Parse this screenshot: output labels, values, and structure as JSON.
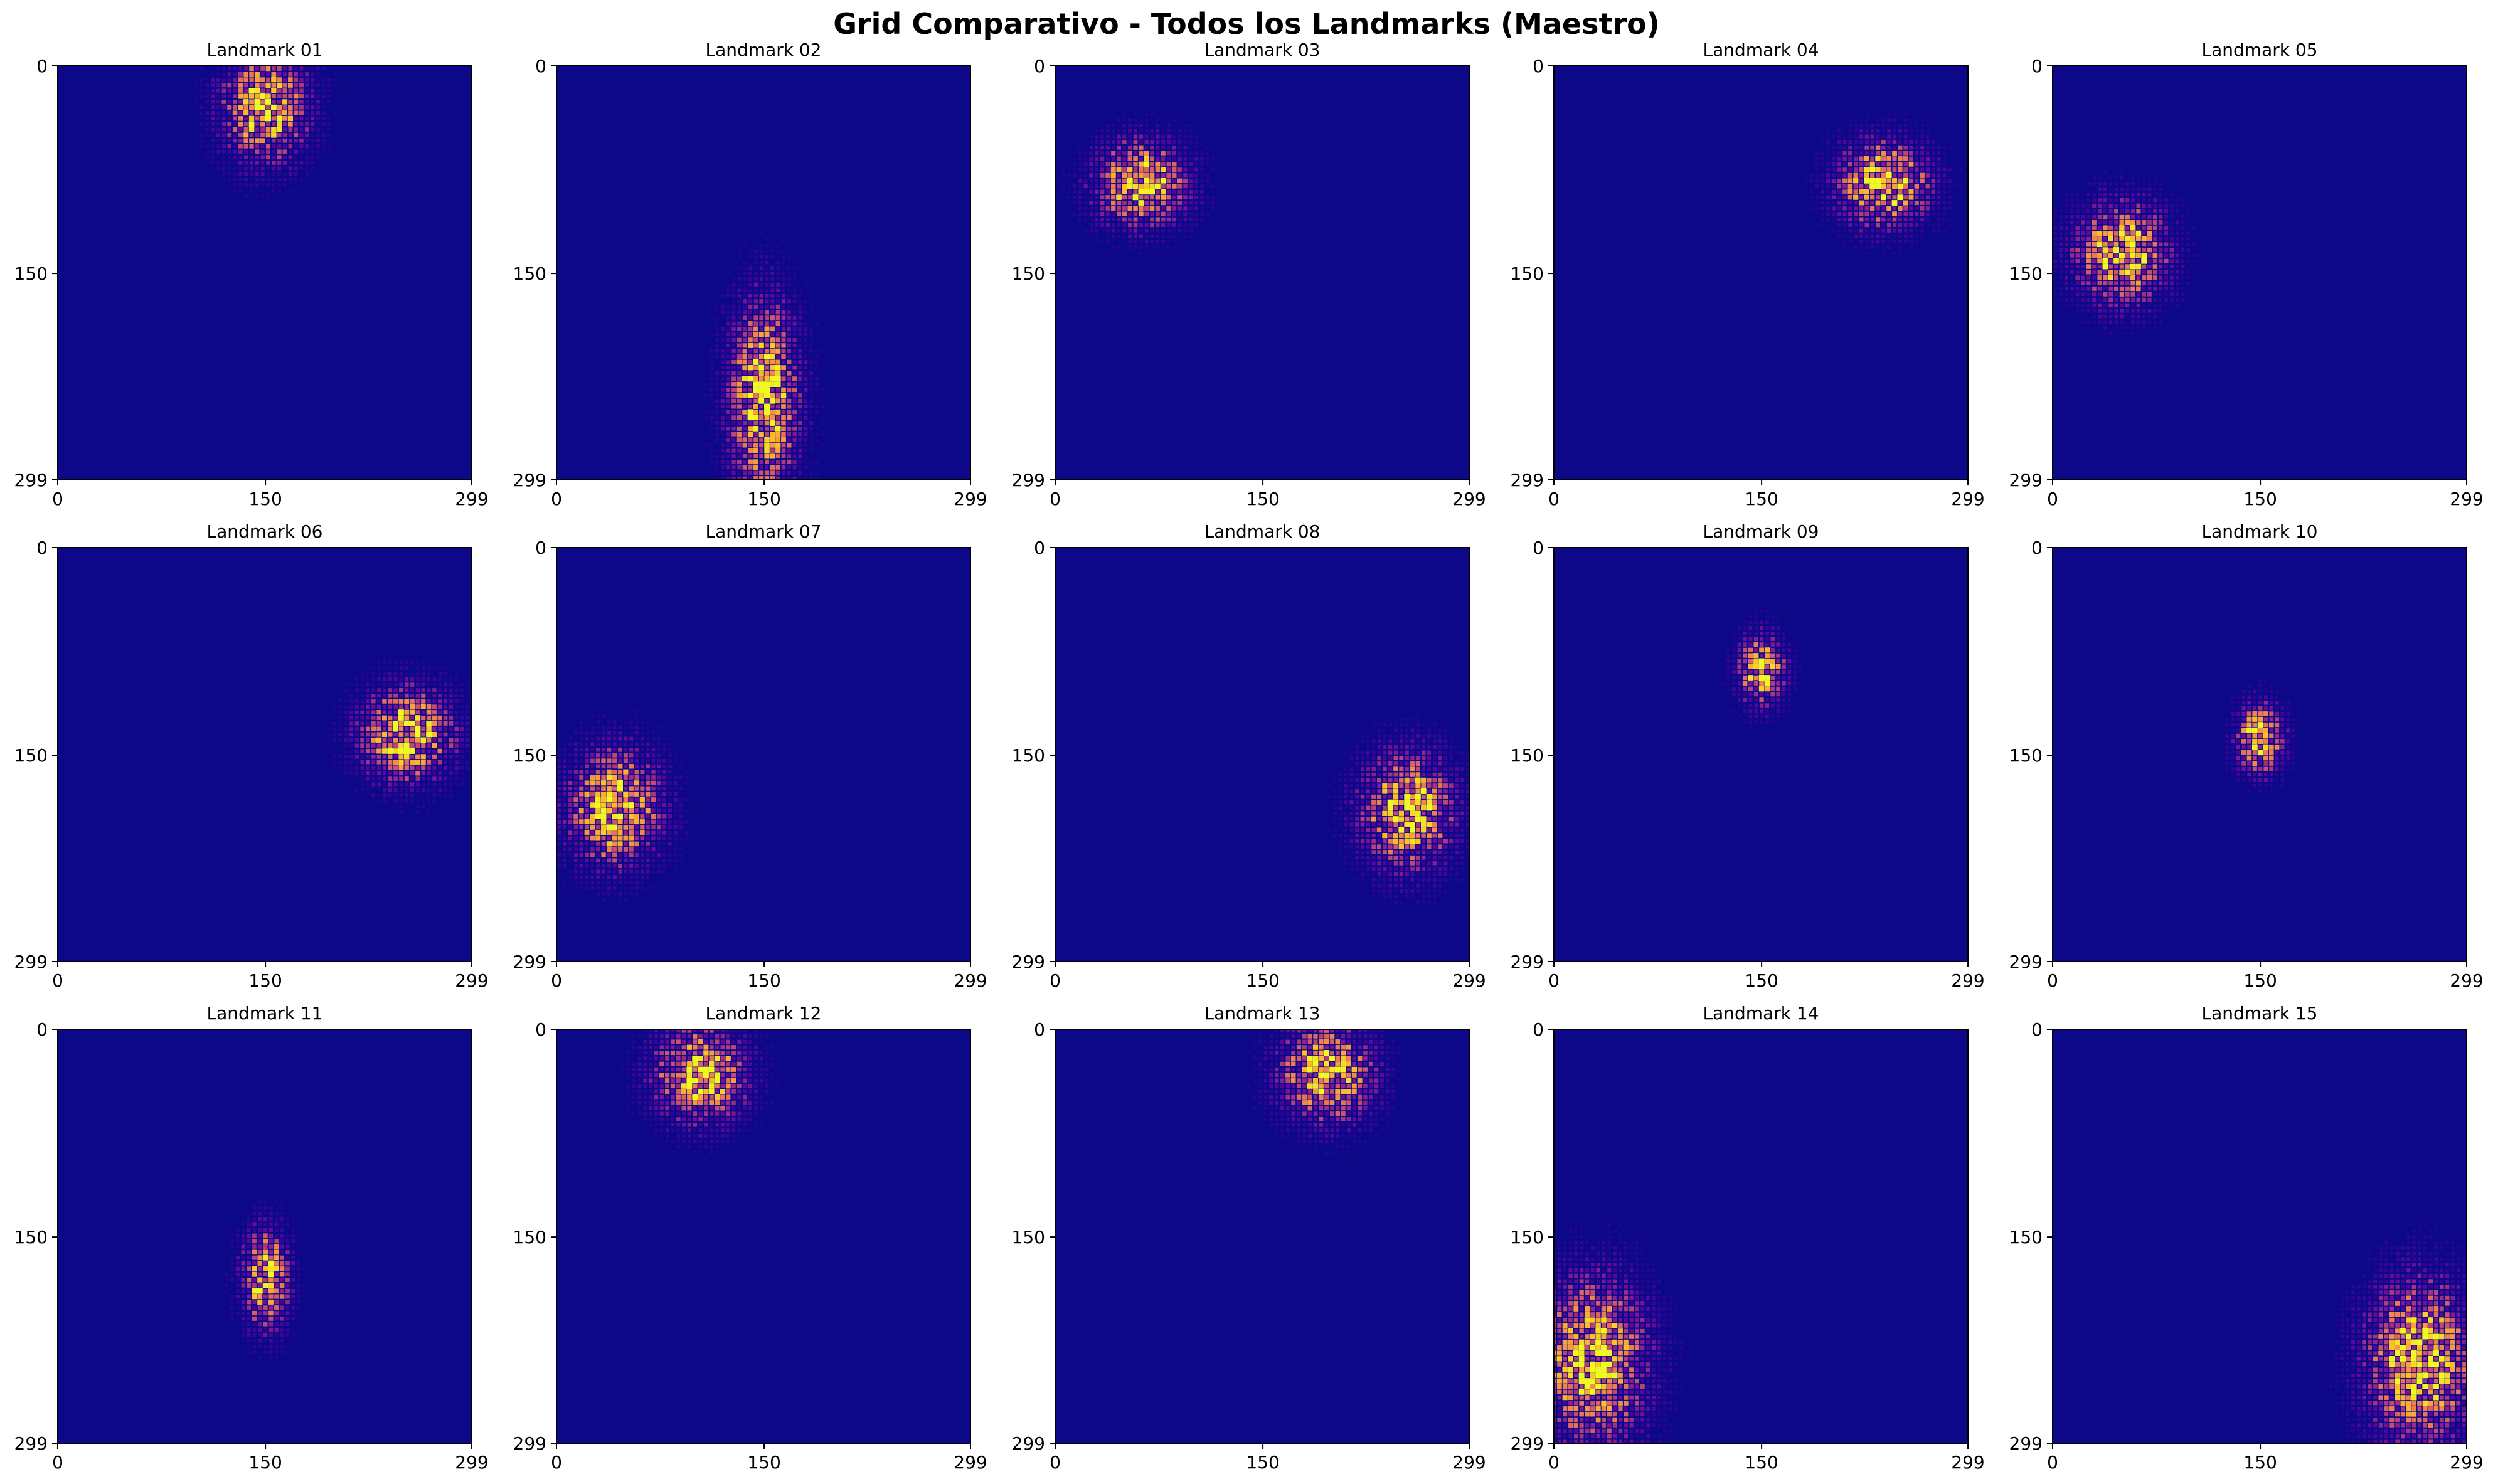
{
  "figure": {
    "title": "Grid Comparativo - Todos los Landmarks (Maestro)"
  },
  "chart_data": {
    "type": "heatmap",
    "title": "Grid Comparativo - Todos los Landmarks (Maestro)",
    "colormap": "plasma",
    "background_color": "#0d0887",
    "rows": 3,
    "cols": 5,
    "xlim": [
      0,
      299
    ],
    "ylim": [
      0,
      299
    ],
    "x_ticks": [
      "0",
      "150",
      "299"
    ],
    "y_ticks": [
      "0",
      "150",
      "299"
    ],
    "panels": [
      {
        "title": "Landmark 01",
        "center": [
          150,
          30
        ],
        "spread": [
          22,
          28
        ]
      },
      {
        "title": "Landmark 02",
        "center": [
          150,
          240
        ],
        "spread": [
          18,
          50
        ]
      },
      {
        "title": "Landmark 03",
        "center": [
          62,
          85
        ],
        "spread": [
          24,
          22
        ]
      },
      {
        "title": "Landmark 04",
        "center": [
          238,
          85
        ],
        "spread": [
          24,
          22
        ]
      },
      {
        "title": "Landmark 05",
        "center": [
          50,
          135
        ],
        "spread": [
          24,
          26
        ]
      },
      {
        "title": "Landmark 06",
        "center": [
          252,
          135
        ],
        "spread": [
          24,
          24
        ]
      },
      {
        "title": "Landmark 07",
        "center": [
          42,
          188
        ],
        "spread": [
          24,
          30
        ]
      },
      {
        "title": "Landmark 08",
        "center": [
          254,
          190
        ],
        "spread": [
          24,
          30
        ]
      },
      {
        "title": "Landmark 09",
        "center": [
          150,
          88
        ],
        "spread": [
          12,
          18
        ]
      },
      {
        "title": "Landmark 10",
        "center": [
          150,
          138
        ],
        "spread": [
          12,
          18
        ]
      },
      {
        "title": "Landmark 11",
        "center": [
          150,
          180
        ],
        "spread": [
          12,
          25
        ]
      },
      {
        "title": "Landmark 12",
        "center": [
          104,
          32
        ],
        "spread": [
          24,
          25
        ]
      },
      {
        "title": "Landmark 13",
        "center": [
          196,
          32
        ],
        "spread": [
          24,
          25
        ]
      },
      {
        "title": "Landmark 14",
        "center": [
          28,
          240
        ],
        "spread": [
          28,
          42
        ]
      },
      {
        "title": "Landmark 15",
        "center": [
          265,
          240
        ],
        "spread": [
          28,
          42
        ]
      }
    ]
  }
}
